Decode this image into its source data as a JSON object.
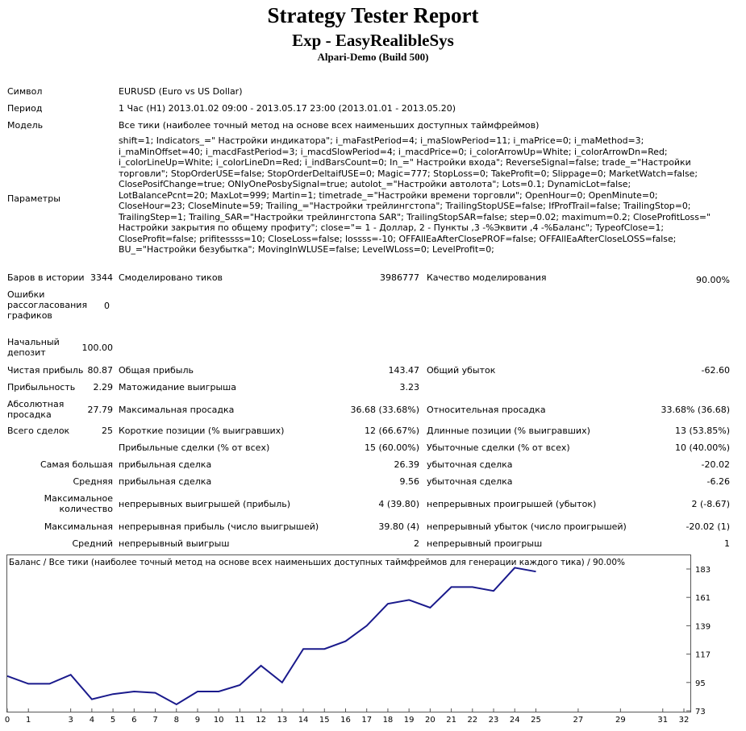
{
  "header": {
    "title": "Strategy Tester Report",
    "expert": "Exp - EasyRealibleSys",
    "server": "Alpari-Demo (Build 500)"
  },
  "info": {
    "symbol_label": "Символ",
    "symbol_value": "EURUSD (Euro vs US Dollar)",
    "period_label": "Период",
    "period_value": "1 Час (H1) 2013.01.02 09:00 - 2013.05.17 23:00 (2013.01.01 - 2013.05.20)",
    "model_label": "Модель",
    "model_value": "Все тики (наиболее точный метод на основе всех наименьших доступных таймфреймов)",
    "params_label": "Параметры",
    "params_value": "shift=1; Indicators_=\" Настройки индикатора\"; i_maFastPeriod=4; i_maSlowPeriod=11; i_maPrice=0; i_maMethod=3; i_maMinOffset=40; i_macdFastPeriod=3; i_macdSlowPeriod=4; i_macdPrice=0; i_colorArrowUp=White; i_colorArrowDn=Red; i_colorLineUp=White; i_colorLineDn=Red; i_indBarsCount=0; In_=\" Настройки входа\"; ReverseSignal=false; trade_=\"Настройки торговли\"; StopOrderUSE=false; StopOrderDeltaifUSE=0; Magic=777; StopLoss=0; TakeProfit=0; Slippage=0; MarketWatch=false; ClosePosifChange=true; ONlyOnePosbySignal=true; autolot_=\"Настройки автолота\"; Lots=0.1; DynamicLot=false; LotBalancePcnt=20; MaxLot=999; Martin=1; timetrade_=\"Настройки времени торговли\"; OpenHour=0; OpenMinute=0; CloseHour=23; CloseMinute=59; Trailing_=\"Настройки трейлингстопа\"; TrailingStopUSE=false; IfProfTrail=false; TrailingStop=0; TrailingStep=1; Trailing_SAR=\"Настройки трейлингстопа SAR\"; TrailingStopSAR=false; step=0.02; maximum=0.2; CloseProfitLoss=\" Настройки закрытия по общему профиту\"; close=\"= 1 - Доллар, 2 - Пункты ,3 -%Эквити ,4 -%Баланс\"; TypeofClose=1; CloseProfit=false; prifitessss=10; CloseLoss=false; lossss=-10; OFFAllEaAfterClosePROF=false; OFFAllEaAfterCloseLOSS=false; BU_=\"Настройки безубытка\"; MovingInWLUSE=false; LevelWLoss=0; LevelProfit=0;"
  },
  "stats": {
    "bars_label": "Баров в истории",
    "bars_value": "3344",
    "ticks_label": "Смоделировано тиков",
    "ticks_value": "3986777",
    "quality_label": "Качество моделирования",
    "quality_value": "90.00%",
    "errors_label": "Ошибки рассогласования графиков",
    "errors_value": "0",
    "deposit_label": "Начальный депозит",
    "deposit_value": "100.00",
    "net_label": "Чистая прибыль",
    "net_value": "80.87",
    "gross_profit_label": "Общая прибыль",
    "gross_profit_value": "143.47",
    "gross_loss_label": "Общий убыток",
    "gross_loss_value": "-62.60",
    "pf_label": "Прибыльность",
    "pf_value": "2.29",
    "payoff_label": "Матожидание выигрыша",
    "payoff_value": "3.23",
    "abs_dd_label": "Абсолютная просадка",
    "abs_dd_value": "27.79",
    "max_dd_label": "Максимальная просадка",
    "max_dd_value": "36.68 (33.68%)",
    "rel_dd_label": "Относительная просадка",
    "rel_dd_value": "33.68% (36.68)",
    "trades_label": "Всего сделок",
    "trades_value": "25",
    "short_label": "Короткие позиции (% выигравших)",
    "short_value": "12 (66.67%)",
    "long_label": "Длинные позиции (% выигравших)",
    "long_value": "13 (53.85%)",
    "profit_trades_label": "Прибыльные сделки (% от всех)",
    "profit_trades_value": "15 (60.00%)",
    "loss_trades_label": "Убыточные сделки (% от всех)",
    "loss_trades_value": "10 (40.00%)",
    "largest_label": "Самая большая",
    "largest_profit_label": "прибыльная сделка",
    "largest_profit_value": "26.39",
    "largest_loss_label": "убыточная сделка",
    "largest_loss_value": "-20.02",
    "average_label": "Средняя",
    "average_profit_label": "прибыльная сделка",
    "average_profit_value": "9.56",
    "average_loss_label": "убыточная сделка",
    "average_loss_value": "-6.26",
    "max_count_label": "Максимальное количество",
    "max_cons_wins_label": "непрерывных выигрышей (прибыль)",
    "max_cons_wins_value": "4 (39.80)",
    "max_cons_losses_label": "непрерывных проигрышей (убыток)",
    "max_cons_losses_value": "2 (-8.67)",
    "maximal_label": "Максимальная",
    "maximal_profit_label": "непрерывная прибыль (число выигрышей)",
    "maximal_profit_value": "39.80 (4)",
    "maximal_loss_label": "непрерывный убыток (число проигрышей)",
    "maximal_loss_value": "-20.02 (1)",
    "avg_cons_label": "Средний",
    "avg_cons_wins_label": "непрерывный выигрыш",
    "avg_cons_wins_value": "2",
    "avg_cons_losses_label": "непрерывный проигрыш",
    "avg_cons_losses_value": "1"
  },
  "chart_data": {
    "type": "line",
    "title": "Баланс / Все тики (наиболее точный метод на основе всех наименьших доступных таймфреймов для генерации каждого тика) / 90.00%",
    "color": "#1a1a8c",
    "x": [
      0,
      1,
      2,
      3,
      4,
      5,
      6,
      7,
      8,
      9,
      10,
      11,
      12,
      13,
      14,
      15,
      16,
      17,
      18,
      19,
      20,
      21,
      22,
      23,
      24,
      25
    ],
    "values": [
      100,
      94,
      94,
      101,
      82,
      86,
      88,
      87,
      78,
      88,
      88,
      93,
      108,
      95,
      121,
      121,
      127,
      139,
      156,
      159,
      153,
      169,
      169,
      166,
      184,
      181
    ],
    "x_ticks": [
      "0",
      "1",
      "3",
      "4",
      "5",
      "6",
      "7",
      "8",
      "9",
      "10",
      "11",
      "12",
      "13",
      "14",
      "15",
      "16",
      "17",
      "18",
      "19",
      "20",
      "21",
      "22",
      "23",
      "24",
      "25",
      "27",
      "29",
      "31",
      "32"
    ],
    "y_ticks": [
      "183",
      "161",
      "139",
      "117",
      "95",
      "73"
    ],
    "xlim": [
      0,
      32
    ],
    "ylim": [
      73,
      183
    ],
    "grid": false
  }
}
